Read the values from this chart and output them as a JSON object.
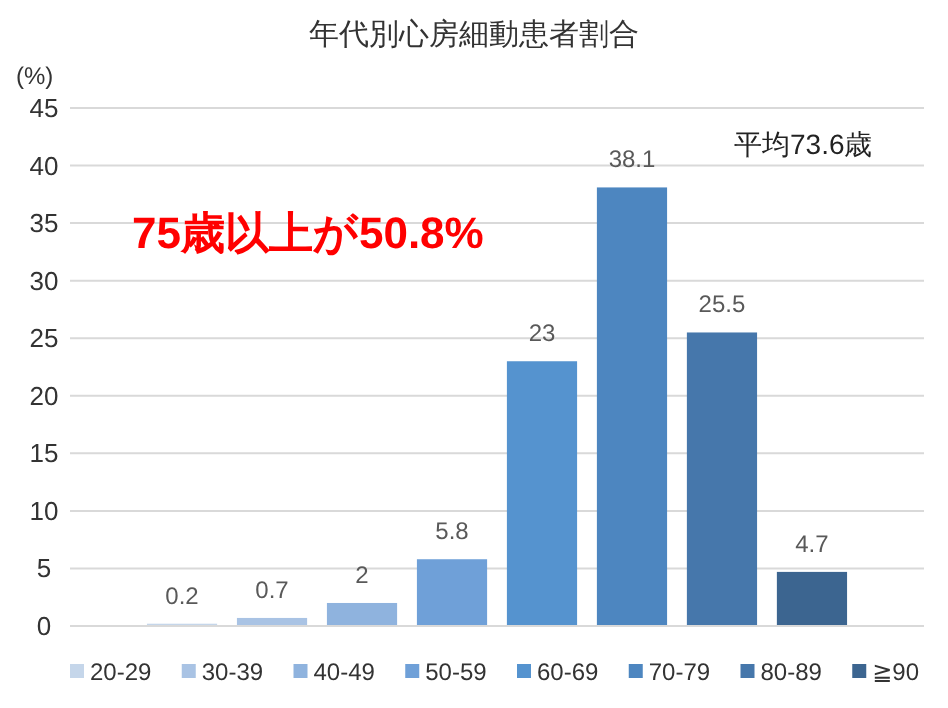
{
  "chart_data": {
    "type": "bar",
    "title": "年代別心房細動患者割合",
    "ylabel": "(%)",
    "categories": [
      null
    ],
    "series": [
      {
        "name": "20-29",
        "color": "#c5d6ea",
        "values": [
          0.2
        ]
      },
      {
        "name": "30-39",
        "color": "#a9c3e4",
        "values": [
          0.7
        ]
      },
      {
        "name": "40-49",
        "color": "#8fb3de",
        "values": [
          2
        ]
      },
      {
        "name": "50-59",
        "color": "#6fa0d8",
        "values": [
          5.8
        ]
      },
      {
        "name": "60-69",
        "color": "#5593cf",
        "values": [
          23
        ]
      },
      {
        "name": "70-79",
        "color": "#4d86c0",
        "values": [
          38.1
        ]
      },
      {
        "name": "80-89",
        "color": "#4677ab",
        "values": [
          25.5
        ]
      },
      {
        "name": "≧90",
        "color": "#3c6590",
        "values": [
          4.7
        ]
      }
    ],
    "ylim": [
      0,
      45
    ],
    "yticks": [
      0,
      5,
      10,
      15,
      20,
      25,
      30,
      35,
      40,
      45
    ],
    "grid": "y",
    "data_labels": true,
    "legend": "bottom",
    "annotations": [
      "平均73.6歳",
      "**75歳以上が50.8%**"
    ]
  }
}
